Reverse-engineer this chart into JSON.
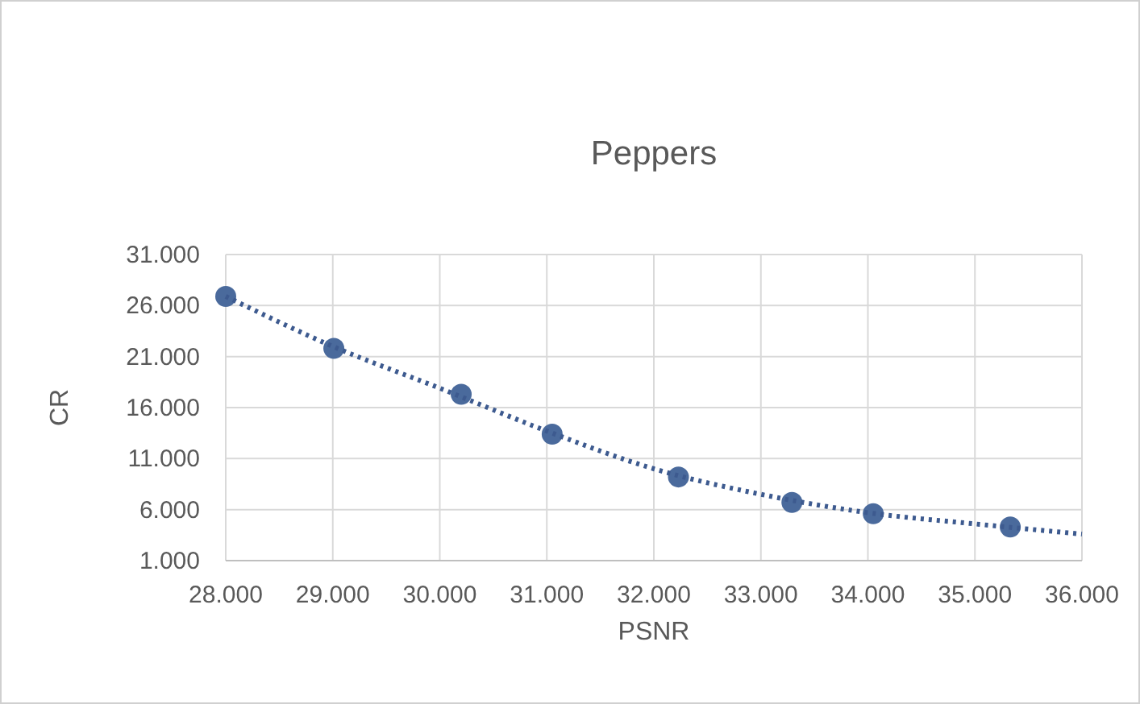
{
  "chart_data": {
    "type": "scatter",
    "title": "Peppers",
    "xlabel": "PSNR",
    "ylabel": "CR",
    "xlim": [
      28,
      36
    ],
    "ylim": [
      1,
      31
    ],
    "xticks": [
      {
        "value": 28,
        "label": "28.000"
      },
      {
        "value": 29,
        "label": "29.000"
      },
      {
        "value": 30,
        "label": "30.000"
      },
      {
        "value": 31,
        "label": "31.000"
      },
      {
        "value": 32,
        "label": "32.000"
      },
      {
        "value": 33,
        "label": "33.000"
      },
      {
        "value": 34,
        "label": "34.000"
      },
      {
        "value": 35,
        "label": "35.000"
      },
      {
        "value": 36,
        "label": "36.000"
      }
    ],
    "yticks": [
      {
        "value": 1,
        "label": "1.000"
      },
      {
        "value": 6,
        "label": "6.000"
      },
      {
        "value": 11,
        "label": "11.000"
      },
      {
        "value": 16,
        "label": "16.000"
      },
      {
        "value": 21,
        "label": "21.000"
      },
      {
        "value": 26,
        "label": "26.000"
      },
      {
        "value": 31,
        "label": "31.000"
      }
    ],
    "grid": true,
    "series": [
      {
        "marker": "circle",
        "color": "#4a6a9c",
        "x": [
          28.0,
          29.01,
          30.2,
          31.05,
          32.23,
          33.29,
          34.05,
          35.33
        ],
        "values": [
          26.9,
          21.8,
          17.3,
          13.4,
          9.2,
          6.7,
          5.6,
          4.3
        ]
      },
      {
        "type": "line",
        "marker": "none",
        "line_style": "dotted",
        "color": "#3d5a8f",
        "x": [
          28,
          29,
          30,
          31,
          32,
          33,
          34,
          35,
          36
        ],
        "values": [
          26.9,
          22.0,
          17.9,
          13.7,
          10.0,
          7.5,
          5.7,
          4.6,
          3.6
        ]
      }
    ]
  }
}
